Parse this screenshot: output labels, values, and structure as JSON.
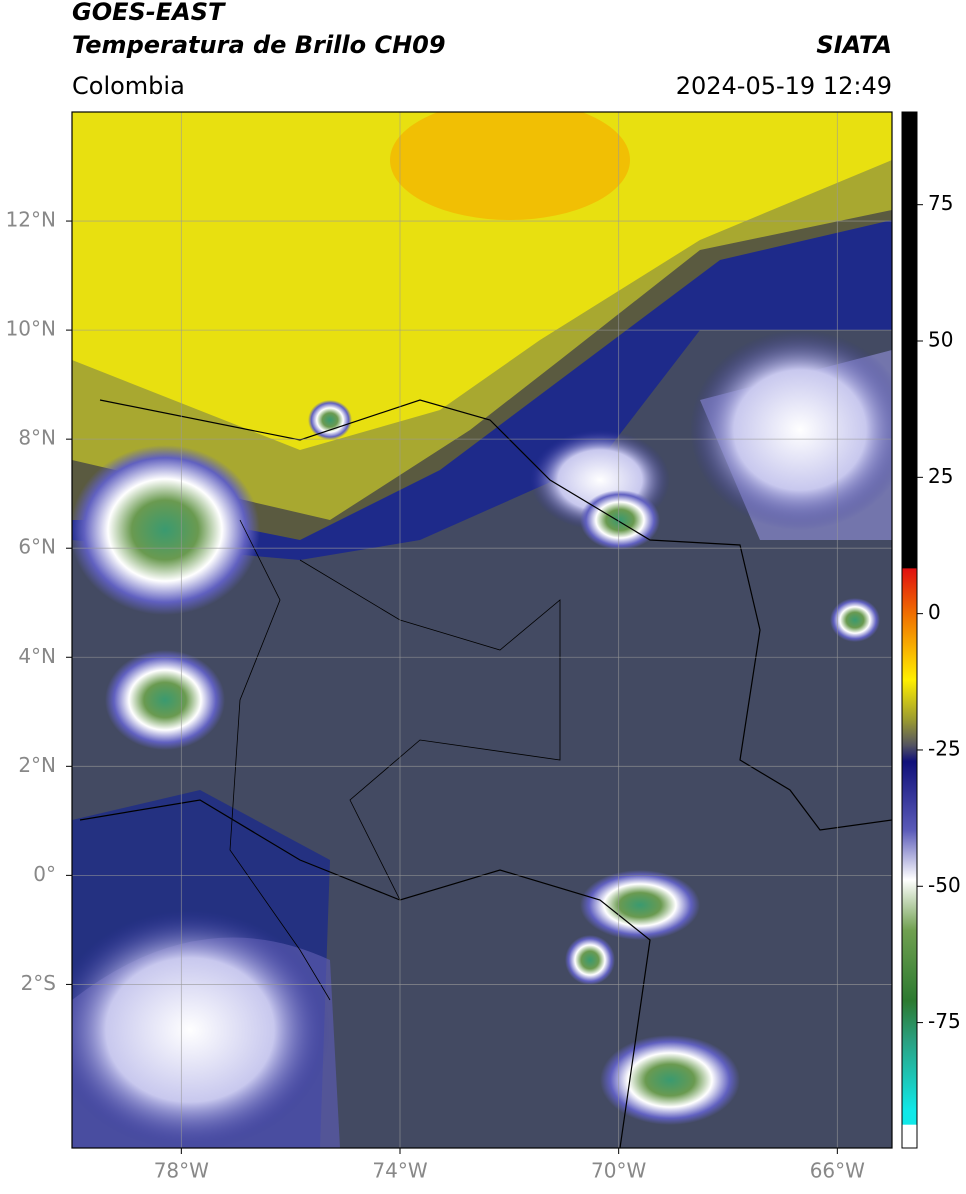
{
  "header": {
    "satellite": "GOES-EAST",
    "product": "Temperatura de Brillo CH09",
    "source": "SIATA",
    "region": "Colombia",
    "datetime": "2024-05-19 12:49"
  },
  "map": {
    "xlim": [
      -80,
      -65
    ],
    "ylim": [
      -5,
      14
    ],
    "xticks": [
      {
        "value": -78,
        "label": "78°W"
      },
      {
        "value": -74,
        "label": "74°W"
      },
      {
        "value": -70,
        "label": "70°W"
      },
      {
        "value": -66,
        "label": "66°W"
      }
    ],
    "yticks": [
      {
        "value": 12,
        "label": "12°N"
      },
      {
        "value": 10,
        "label": "10°N"
      },
      {
        "value": 8,
        "label": "8°N"
      },
      {
        "value": 6,
        "label": "6°N"
      },
      {
        "value": 4,
        "label": "4°N"
      },
      {
        "value": 2,
        "label": "2°N"
      },
      {
        "value": 0,
        "label": "0°"
      },
      {
        "value": -2,
        "label": "2°S"
      }
    ],
    "grid": true
  },
  "colorbar": {
    "lim": [
      -98,
      92
    ],
    "ticks": [
      75,
      50,
      25,
      0,
      -25,
      -50,
      -75
    ]
  }
}
